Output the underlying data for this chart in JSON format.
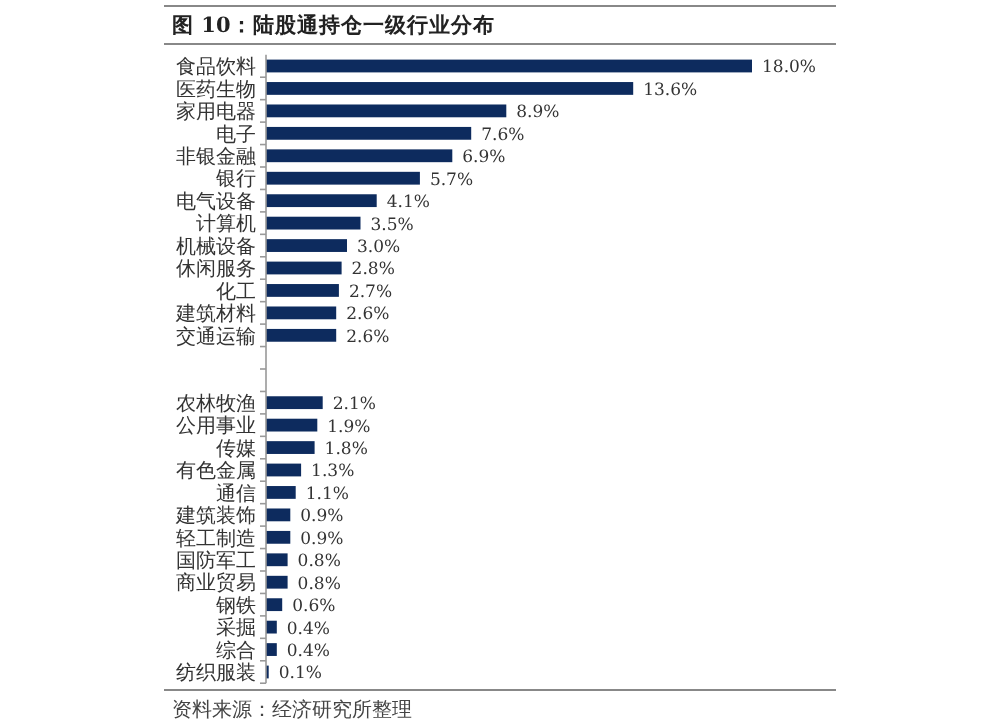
{
  "chart_data": {
    "type": "bar",
    "orientation": "horizontal",
    "title": "图 10：陆股通持仓一级行业分布",
    "categories": [
      "食品饮料",
      "医药生物",
      "家用电器",
      "电子",
      "非银金融",
      "银行",
      "电气设备",
      "计算机",
      "机械设备",
      "休闲服务",
      "化工",
      "建筑材料",
      "交通运输",
      null,
      null,
      "农林牧渔",
      "公用事业",
      "传媒",
      "有色金属",
      "通信",
      "建筑装饰",
      "轻工制造",
      "国防军工",
      "商业贸易",
      "钢铁",
      "采掘",
      "综合",
      "纺织服装"
    ],
    "values": [
      18.0,
      13.6,
      8.9,
      7.6,
      6.9,
      5.7,
      4.1,
      3.5,
      3.0,
      2.8,
      2.7,
      2.6,
      2.6,
      null,
      null,
      2.1,
      1.9,
      1.8,
      1.3,
      1.1,
      0.9,
      0.9,
      0.8,
      0.8,
      0.6,
      0.4,
      0.4,
      0.1
    ],
    "value_labels": [
      "18.0%",
      "13.6%",
      "8.9%",
      "7.6%",
      "6.9%",
      "5.7%",
      "4.1%",
      "3.5%",
      "3.0%",
      "2.8%",
      "2.7%",
      "2.6%",
      "2.6%",
      null,
      null,
      "2.1%",
      "1.9%",
      "1.8%",
      "1.3%",
      "1.1%",
      "0.9%",
      "0.9%",
      "0.8%",
      "0.8%",
      "0.6%",
      "0.4%",
      "0.4%",
      "0.1%"
    ],
    "color": "#0d2b5e",
    "annotations": [
      "资料来源：经济研究所整理"
    ]
  }
}
